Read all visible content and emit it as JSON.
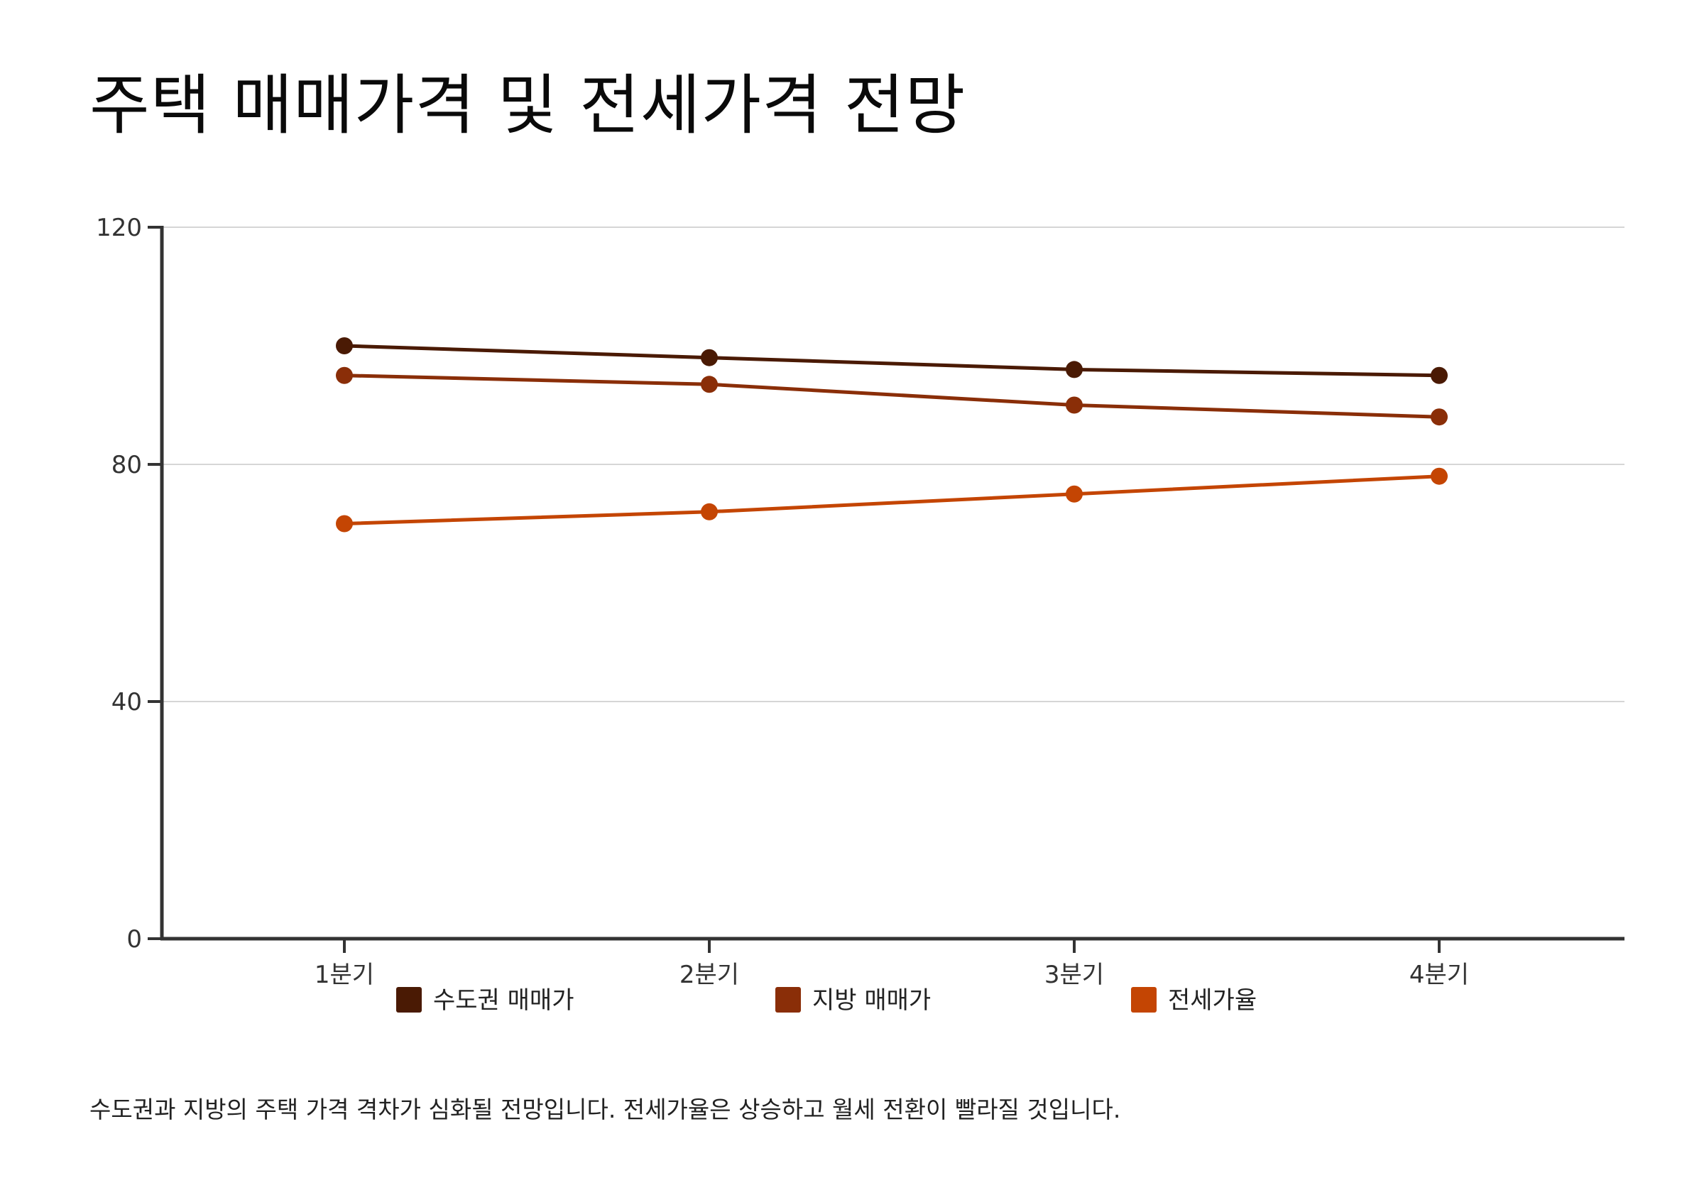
{
  "page": {
    "title": "주택 매매가격 및 전세가격 전망",
    "caption": "수도권과 지방의 주택 가격 격차가 심화될 전망입니다. 전세가율은 상승하고 월세 전환이 빨라질 것입니다."
  },
  "colors": {
    "axis": "#333333",
    "grid": "#d6d6d6",
    "text": "#333333"
  },
  "chart_data": {
    "type": "line",
    "title": "주택 매매가격 및 전세가격 전망",
    "xlabel": "",
    "ylabel": "",
    "categories": [
      "1분기",
      "2분기",
      "3분기",
      "4분기"
    ],
    "ylim": [
      0,
      120
    ],
    "yticks": [
      0,
      40,
      80,
      120
    ],
    "grid": true,
    "legend_position": "bottom",
    "series": [
      {
        "name": "수도권 매매가",
        "values": [
          100,
          98,
          96,
          95
        ],
        "color": "#4a1a04"
      },
      {
        "name": "지방 매매가",
        "values": [
          95,
          93.5,
          90,
          88
        ],
        "color": "#8a2e08"
      },
      {
        "name": "전세가율",
        "values": [
          70,
          72,
          75,
          78
        ],
        "color": "#c44503"
      }
    ]
  }
}
